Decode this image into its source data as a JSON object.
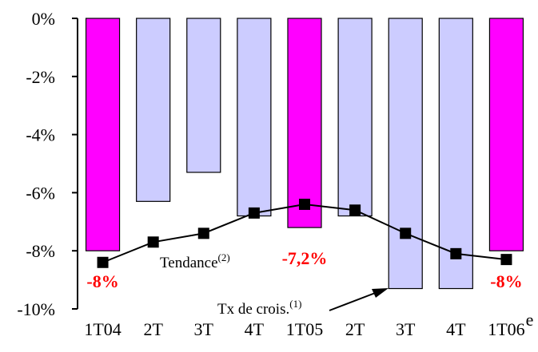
{
  "chart_data": {
    "type": "bar",
    "categories": [
      "1T04",
      "2T",
      "3T",
      "4T",
      "1T05",
      "2T",
      "3T",
      "4T",
      "1T06"
    ],
    "category_superscript": "e",
    "ylim": [
      -10,
      0
    ],
    "ytick_labels": [
      "0%",
      "-2%",
      "-4%",
      "-6%",
      "-8%",
      "-10%"
    ],
    "grid": false,
    "series": [
      {
        "name": "Tx de crois.",
        "name_superscript": "(1)",
        "kind": "bar",
        "values": [
          -8.0,
          -6.3,
          -5.3,
          -6.8,
          -7.2,
          -6.8,
          -9.3,
          -9.3,
          -8.0
        ],
        "highlight": [
          true,
          false,
          false,
          false,
          true,
          false,
          false,
          false,
          true
        ]
      },
      {
        "name": "Tendance",
        "name_superscript": "(2)",
        "kind": "line",
        "values": [
          -8.4,
          -7.7,
          -7.4,
          -6.7,
          -6.4,
          -6.6,
          -7.4,
          -8.1,
          -8.3
        ]
      }
    ],
    "data_labels": [
      {
        "index": 0,
        "text": "-8%"
      },
      {
        "index": 4,
        "text": "-7,2%"
      },
      {
        "index": 8,
        "text": "-8%"
      }
    ],
    "colors": {
      "bar": "#ccccff",
      "bar_highlight": "#ff00ff",
      "bar_border": "#000000",
      "line": "#000000",
      "marker": "#000000",
      "data_label": "#ff0000"
    }
  }
}
